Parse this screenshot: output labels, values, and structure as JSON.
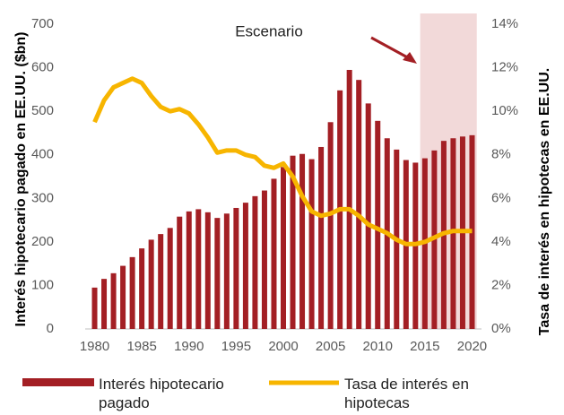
{
  "chart_data": {
    "type": "bar_line",
    "annotation": "Escenario",
    "ylabel": "Interés hipotecario pagado en EE.UU. ($bn)",
    "y2label": "Tasa de interés en hipotecas en EE.UU.",
    "x": [
      1980,
      1981,
      1982,
      1983,
      1984,
      1985,
      1986,
      1987,
      1988,
      1989,
      1990,
      1991,
      1992,
      1993,
      1994,
      1995,
      1996,
      1997,
      1998,
      1999,
      2000,
      2001,
      2002,
      2003,
      2004,
      2005,
      2006,
      2007,
      2008,
      2009,
      2010,
      2011,
      2012,
      2013,
      2014,
      2015,
      2016,
      2017,
      2018,
      2019,
      2020
    ],
    "xlim": [
      1979,
      2021
    ],
    "xticks": [
      1980,
      1985,
      1990,
      1995,
      2000,
      2005,
      2010,
      2015,
      2020
    ],
    "ylim": [
      0,
      700
    ],
    "yticks": [
      0,
      100,
      200,
      300,
      400,
      500,
      600,
      700
    ],
    "y2lim": [
      0,
      14
    ],
    "y2ticks": [
      {
        "value": 0,
        "label": "0%"
      },
      {
        "value": 2,
        "label": "2%"
      },
      {
        "value": 4,
        "label": "4%"
      },
      {
        "value": 6,
        "label": "6%"
      },
      {
        "value": 8,
        "label": "8%"
      },
      {
        "value": 10,
        "label": "10%"
      },
      {
        "value": 12,
        "label": "12%"
      },
      {
        "value": 14,
        "label": "14%"
      }
    ],
    "highlight_range": [
      2014.5,
      2020.5
    ],
    "highlight_color": "#f2d9d9",
    "series": [
      {
        "name": "Interés hipotecario pagado",
        "color": "#a31f24",
        "type": "bar",
        "values": [
          95,
          115,
          128,
          145,
          165,
          185,
          205,
          218,
          232,
          258,
          270,
          275,
          268,
          255,
          265,
          278,
          290,
          305,
          318,
          345,
          372,
          398,
          402,
          390,
          418,
          475,
          548,
          595,
          572,
          518,
          478,
          438,
          412,
          388,
          382,
          392,
          410,
          432,
          438,
          442,
          445
        ]
      },
      {
        "name": "Tasa de interés en hipotecas",
        "color": "#f7b500",
        "type": "line",
        "axis": "y2",
        "values": [
          9.5,
          10.5,
          11.1,
          11.3,
          11.5,
          11.3,
          10.7,
          10.2,
          10.0,
          10.1,
          9.9,
          9.4,
          8.8,
          8.1,
          8.2,
          8.2,
          8.0,
          7.9,
          7.5,
          7.4,
          7.6,
          7.0,
          6.1,
          5.4,
          5.2,
          5.3,
          5.5,
          5.5,
          5.2,
          4.8,
          4.6,
          4.4,
          4.1,
          3.9,
          3.9,
          4.0,
          4.2,
          4.4,
          4.5,
          4.5,
          4.5
        ]
      }
    ]
  }
}
